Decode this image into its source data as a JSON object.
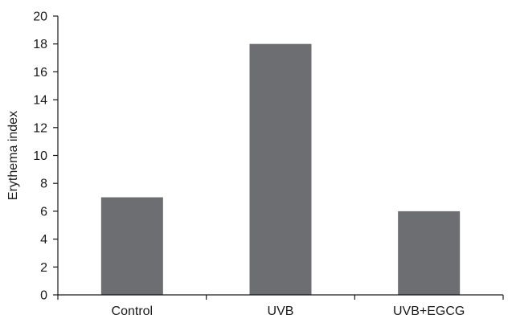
{
  "chart_data": {
    "type": "bar",
    "title": "",
    "xlabel": "",
    "ylabel": "Erythema index",
    "categories": [
      "Control",
      "UVB",
      "UVB+EGCG"
    ],
    "values": [
      7,
      18,
      6
    ],
    "ylim": [
      0,
      20
    ],
    "yticks": [
      0,
      2,
      4,
      6,
      8,
      10,
      12,
      14,
      16,
      18,
      20
    ],
    "grid": false,
    "legend": "none",
    "bar_color": "#6d6e71",
    "axis_color": "#1a1a1a"
  }
}
